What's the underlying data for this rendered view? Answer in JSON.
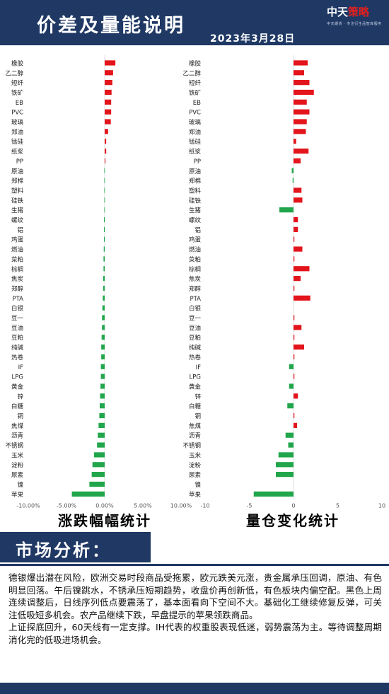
{
  "header": {
    "title": "价差及量能说明",
    "logo": "中天策略",
    "logo_sub": "中天期货 · 专注衍生品智库服务",
    "date": "2023年3月28日"
  },
  "colors": {
    "brand": "#1f3864",
    "up": "#e3141b",
    "down": "#21a64b"
  },
  "chart_data": [
    {
      "type": "bar",
      "orientation": "horizontal",
      "caption": "涨跌幅幅统计",
      "categories": [
        "橡胶",
        "乙二醇",
        "短纤",
        "铁矿",
        "EB",
        "PVC",
        "玻璃",
        "郑油",
        "锰硅",
        "纸浆",
        "PP",
        "原油",
        "郑棉",
        "塑料",
        "硅铁",
        "生猪",
        "螺纹",
        "铝",
        "鸡蛋",
        "燃油",
        "菜粕",
        "棕榈",
        "焦炭",
        "郑醇",
        "PTA",
        "白银",
        "豆一",
        "豆油",
        "豆粕",
        "纯碱",
        "热卷",
        "IF",
        "LPG",
        "黄金",
        "锌",
        "白糖",
        "铜",
        "焦煤",
        "沥青",
        "不锈钢",
        "玉米",
        "淀粉",
        "尿素",
        "镍",
        "苹果"
      ],
      "values": [
        1.4,
        1.1,
        1.0,
        0.9,
        0.85,
        0.85,
        0.8,
        0.45,
        0.2,
        0.2,
        0.1,
        -0.05,
        -0.05,
        -0.05,
        -0.05,
        -0.05,
        -0.1,
        -0.1,
        -0.1,
        -0.12,
        -0.15,
        -0.15,
        -0.2,
        -0.2,
        -0.25,
        -0.3,
        -0.35,
        -0.35,
        -0.4,
        -0.45,
        -0.45,
        -0.5,
        -0.5,
        -0.55,
        -0.6,
        -0.65,
        -0.7,
        -0.8,
        -0.9,
        -1.0,
        -1.4,
        -1.6,
        -1.7,
        -2.0,
        -4.3
      ],
      "xlim": [
        -10,
        10
      ],
      "xticks": [
        "-10.00%",
        "-5.00%",
        "0.00%",
        "5.00%",
        "10.00%"
      ]
    },
    {
      "type": "bar",
      "orientation": "horizontal",
      "caption": "量仓变化统计",
      "categories": [
        "橡胶",
        "乙二醇",
        "短纤",
        "铁矿",
        "EB",
        "PVC",
        "玻璃",
        "郑油",
        "锰硅",
        "纸浆",
        "PP",
        "原油",
        "郑棉",
        "塑料",
        "硅铁",
        "生猪",
        "螺纹",
        "铝",
        "鸡蛋",
        "燃油",
        "菜粕",
        "棕榈",
        "焦炭",
        "郑醇",
        "PTA",
        "白银",
        "豆一",
        "豆油",
        "豆粕",
        "纯碱",
        "热卷",
        "IF",
        "LPG",
        "黄金",
        "锌",
        "白糖",
        "铜",
        "焦煤",
        "沥青",
        "不锈钢",
        "玉米",
        "淀粉",
        "尿素",
        "镍",
        "苹果"
      ],
      "values": [
        1.6,
        1.2,
        1.8,
        2.3,
        1.5,
        1.8,
        1.5,
        1.4,
        0.3,
        1.7,
        0.8,
        -0.2,
        -0.1,
        0.9,
        1.0,
        -1.6,
        0.5,
        0.5,
        0.1,
        1.0,
        0.1,
        1.8,
        0.8,
        0.1,
        1.9,
        0.0,
        0.1,
        0.9,
        0.1,
        1.2,
        0.1,
        -0.5,
        0.1,
        -0.5,
        0.5,
        -0.7,
        0.1,
        0.4,
        -0.9,
        -0.6,
        -1.7,
        -2.0,
        -2.0,
        0.0,
        -4.5
      ],
      "xlim": [
        -10,
        10
      ],
      "xticks": [
        "-10",
        "-5",
        "0",
        "5",
        "10"
      ]
    }
  ],
  "analysis": {
    "title": "市场分析：",
    "paragraphs": [
      "德银爆出潜在风险，欧洲交易时段商品受拖累，欧元跌美元涨，贵金属承压回调，原油、有色明显回落。午后镍跳水，不锈承压短期趋势，收盘价再创新低，有色板块内偏空配。黑色上周连续调整后，日线序列低点要震荡了，基本面看向下空间不大。基础化工继续修复反弹，可关注低吸短多机会。农产品继续下跌，早盘提示的苹果领跌商品。",
      "上证探底回升，60天线有一定支撑。IH代表的权重股表现低迷，弱势震荡为主。等待调整周期消化完的低吸进场机会。"
    ]
  }
}
